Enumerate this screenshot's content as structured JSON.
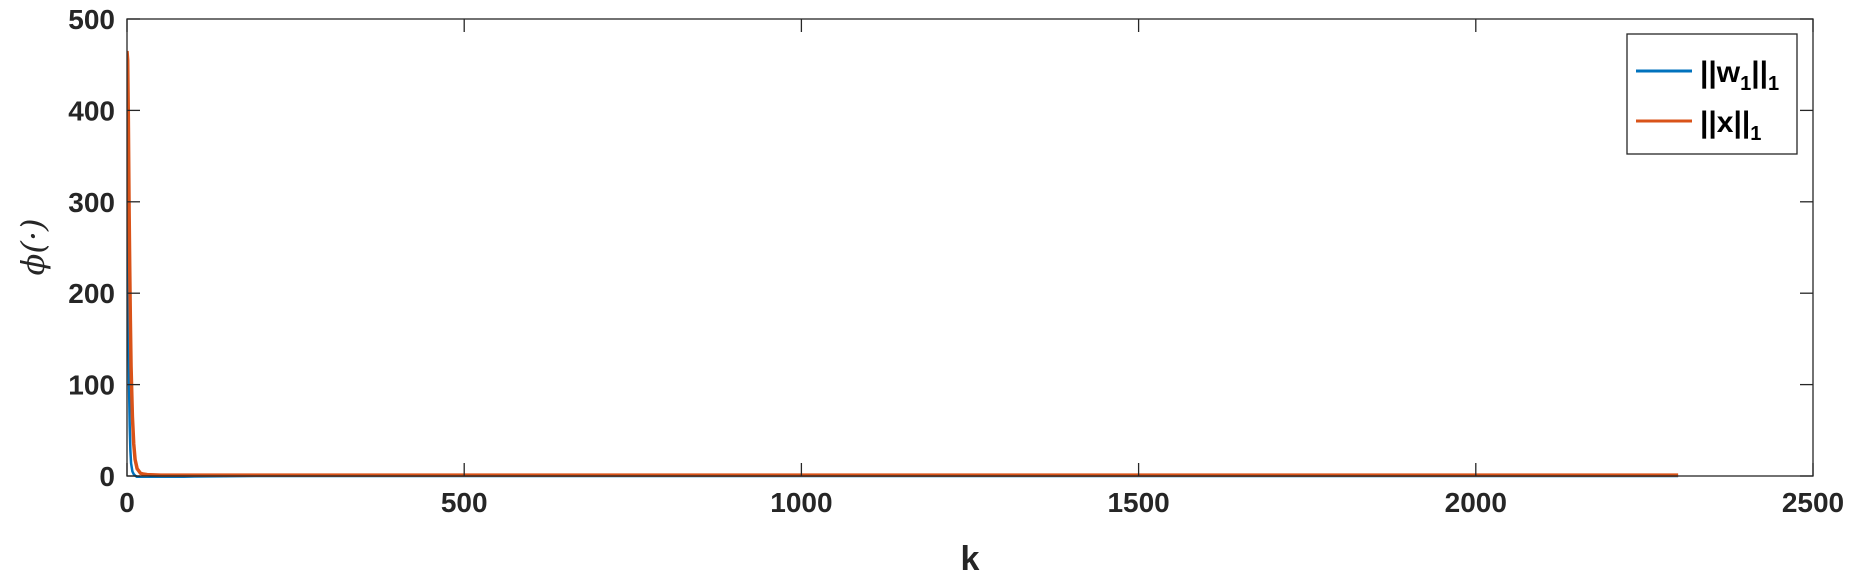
{
  "chart_data": {
    "type": "line",
    "xlabel": "k",
    "ylabel": "ϕ(·)",
    "xlim": [
      0,
      2500
    ],
    "ylim": [
      0,
      500
    ],
    "xticks": [
      0,
      500,
      1000,
      1500,
      2000,
      2500
    ],
    "yticks": [
      0,
      100,
      200,
      300,
      400,
      500
    ],
    "grid": false,
    "legend_position": "top-right",
    "series": [
      {
        "name": "||w1||1",
        "legend_main": "||w",
        "legend_sub1": "1",
        "legend_mid": "||",
        "legend_sub2": "1",
        "color": "#0072BD",
        "x": [
          0,
          1,
          2,
          3,
          4,
          5,
          6,
          8,
          10,
          12,
          15,
          20,
          30,
          50,
          100,
          200,
          500,
          1000,
          1500,
          2000,
          2300
        ],
        "y": [
          430,
          300,
          180,
          100,
          55,
          28,
          14,
          5,
          2,
          0.5,
          -1,
          -2,
          -2,
          -1.5,
          -0.5,
          0,
          0,
          0,
          0,
          0,
          0
        ]
      },
      {
        "name": "||x||1",
        "legend_main": "||x||",
        "legend_sub": "1",
        "color": "#D95319",
        "x": [
          0,
          1,
          2,
          3,
          4,
          5,
          6,
          8,
          10,
          12,
          15,
          20,
          25,
          30,
          50,
          100,
          200,
          500,
          1000,
          1500,
          2000,
          2300
        ],
        "y": [
          465,
          455,
          390,
          300,
          230,
          170,
          120,
          65,
          35,
          18,
          8,
          3,
          2,
          1.5,
          1,
          1,
          1,
          1,
          1,
          1,
          1,
          1
        ]
      }
    ]
  }
}
